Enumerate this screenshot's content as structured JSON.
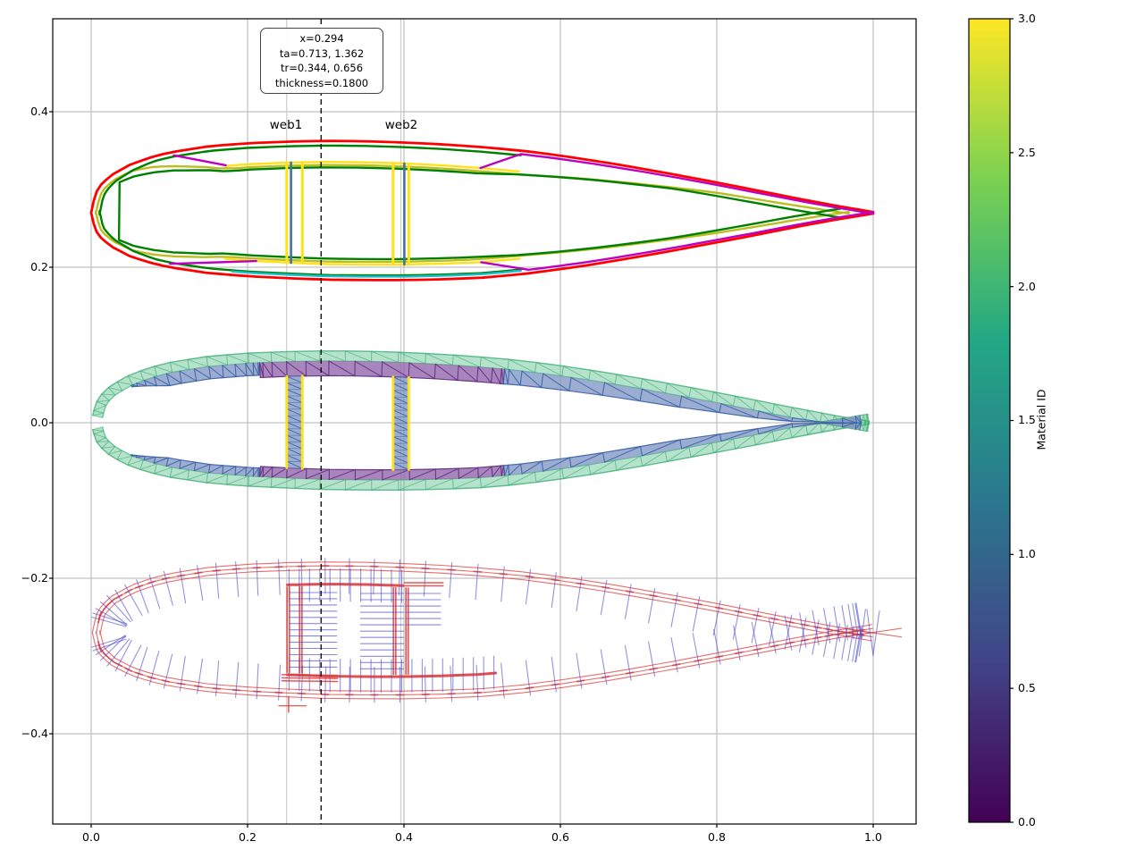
{
  "figure": {
    "kind": "blade-cross-section-analysis",
    "background": "#ffffff"
  },
  "chart_data": {
    "type": "line",
    "title": "",
    "xlabel": "",
    "ylabel": "",
    "xlim": [
      -0.049,
      1.055
    ],
    "ylim": [
      -0.516,
      0.52
    ],
    "grid": true,
    "x_tick_values": [
      0.0,
      0.2,
      0.4,
      0.6,
      0.8,
      1.0
    ],
    "x_tick_labels": [
      "0.0",
      "0.2",
      "0.4",
      "0.6",
      "0.8",
      "1.0"
    ],
    "y_tick_values": [
      0.4,
      0.2,
      0.0,
      -0.2,
      -0.4
    ],
    "y_tick_labels": [
      "0.4",
      "0.2",
      "0.0",
      "−0.2",
      "−0.4"
    ],
    "annotation": {
      "lines": [
        "x=0.294",
        "ta=0.713, 1.362",
        "tr=0.344, 0.656",
        "thickness=0.1800"
      ]
    },
    "cursor_x": 0.294,
    "guide_x": [
      0.25,
      0.396
    ],
    "web_labels": [
      {
        "text": "web1",
        "x": 0.25
      },
      {
        "text": "web2",
        "x": 0.397
      }
    ],
    "webs": [
      {
        "x0": 0.25,
        "x1": 0.27,
        "core_x": 0.2555
      },
      {
        "x0": 0.386,
        "x1": 0.406,
        "core_x": 0.4005
      }
    ],
    "views": {
      "layup_center_y": 0.27,
      "mesh_center_y": 0.0,
      "orientation_center_y": -0.27
    },
    "airfoil": {
      "chord": 1.0,
      "thickness": 0.18,
      "x": [
        0.0,
        0.005,
        0.0125,
        0.025,
        0.05,
        0.075,
        0.1,
        0.15,
        0.2,
        0.25,
        0.3,
        0.35,
        0.4,
        0.45,
        0.5,
        0.55,
        0.6,
        0.65,
        0.7,
        0.75,
        0.8,
        0.85,
        0.9,
        0.95,
        1.0
      ],
      "upper": [
        0.0,
        0.024,
        0.036,
        0.048,
        0.062,
        0.071,
        0.0775,
        0.0855,
        0.0895,
        0.0915,
        0.0925,
        0.092,
        0.0905,
        0.088,
        0.0845,
        0.08,
        0.0735,
        0.066,
        0.0575,
        0.0485,
        0.039,
        0.029,
        0.019,
        0.0095,
        0.001
      ],
      "lower": [
        0.0,
        -0.022,
        -0.032,
        -0.043,
        -0.056,
        -0.064,
        -0.07,
        -0.0775,
        -0.0815,
        -0.084,
        -0.086,
        -0.0865,
        -0.0865,
        -0.0855,
        -0.0835,
        -0.079,
        -0.0725,
        -0.065,
        -0.0565,
        -0.0475,
        -0.038,
        -0.0285,
        -0.0185,
        -0.0092,
        -0.001
      ]
    },
    "layup_lines": [
      {
        "name": "outer-outline",
        "color": "outline",
        "w": 2.8,
        "kind": "loop",
        "du": [
          [
            0,
            0
          ],
          [
            1,
            0
          ]
        ],
        "dl": [
          [
            0,
            0
          ],
          [
            1,
            0
          ]
        ]
      },
      {
        "name": "liner",
        "color": "liner",
        "w": 2.4,
        "kind": "loop",
        "xmax": 0.97,
        "du": [
          [
            0,
            0.006
          ],
          [
            0.05,
            0.008
          ],
          [
            0.17,
            0.031
          ],
          [
            0.55,
            0.031
          ],
          [
            0.8,
            0.013
          ],
          [
            0.97,
            0.007
          ]
        ],
        "dl": [
          [
            0,
            0.006
          ],
          [
            0.05,
            0.008
          ],
          [
            0.17,
            0.023
          ],
          [
            0.55,
            0.024
          ],
          [
            0.8,
            0.012
          ],
          [
            0.97,
            0.007
          ]
        ]
      },
      {
        "name": "skin-inner-outer",
        "color": "skin",
        "w": 2.4,
        "kind": "loop",
        "xmax": 0.55,
        "du": [
          [
            0,
            0.011
          ],
          [
            0.08,
            0.006
          ],
          [
            0.55,
            0.006
          ]
        ],
        "dl": [
          [
            0,
            0.011
          ],
          [
            0.08,
            0.006
          ],
          [
            0.55,
            0.006
          ]
        ]
      },
      {
        "name": "skin-inner-deep",
        "color": "skin",
        "w": 2.4,
        "kind": "loop",
        "xmin": 0.03,
        "xmax": 0.96,
        "du": [
          [
            0.03,
            0.013
          ],
          [
            0.17,
            0.034
          ],
          [
            0.5,
            0.034
          ],
          [
            0.75,
            0.018
          ],
          [
            0.96,
            0.014
          ]
        ],
        "dl": [
          [
            0.03,
            0.012
          ],
          [
            0.17,
            0.027
          ],
          [
            0.5,
            0.027
          ],
          [
            0.75,
            0.016
          ],
          [
            0.96,
            0.013
          ]
        ]
      },
      {
        "name": "sparcap-upper",
        "color": "spar",
        "w": 2.4,
        "kind": "upper",
        "xmin": 0.17,
        "xmax": 0.55,
        "du": [
          [
            0,
            0.027
          ],
          [
            1,
            0.027
          ]
        ]
      },
      {
        "name": "sparcap-lower",
        "color": "spar",
        "w": 2.4,
        "kind": "lower",
        "xmin": 0.17,
        "xmax": 0.55,
        "dl": [
          [
            0,
            0.02
          ],
          [
            1,
            0.02
          ]
        ]
      },
      {
        "name": "le-core-lower",
        "color": "core",
        "w": 2.4,
        "kind": "lower",
        "xmin": 0.18,
        "xmax": 0.55,
        "dl": [
          [
            0,
            0.0045
          ],
          [
            1,
            0.0045
          ]
        ]
      },
      {
        "name": "te-reinf-upper",
        "color": "reinf",
        "w": 2.4,
        "kind": "upper",
        "xmin": 0.55,
        "xmax": 1.0,
        "du": [
          [
            0.55,
            0.0045
          ],
          [
            1.0,
            0.002
          ]
        ],
        "lead": [
          0.5,
          0.027
        ]
      },
      {
        "name": "te-reinf-lower",
        "color": "reinf",
        "w": 2.4,
        "kind": "lower",
        "xmin": 0.56,
        "xmax": 1.0,
        "dl": [
          [
            0.56,
            0.0045
          ],
          [
            1.0,
            0.002
          ]
        ],
        "lead": [
          0.5,
          0.02
        ]
      },
      {
        "name": "le-reinf-upper",
        "color": "reinf",
        "w": 2.4,
        "kind": "segu",
        "x0": 0.105,
        "d0": 0.0045,
        "x1": 0.17,
        "d1": 0.026
      },
      {
        "name": "le-reinf-lower",
        "color": "reinf",
        "w": 2.4,
        "kind": "segl",
        "x0": 0.1,
        "d0": 0.0045,
        "x1": 0.21,
        "d1": 0.02
      }
    ],
    "mesh": {
      "skin_depth": 0.013,
      "panels": [
        {
          "side": "u",
          "x0": 0.045,
          "x1": 0.215,
          "din": [
            [
              0.045,
              0.015
            ],
            [
              0.09,
              0.029
            ],
            [
              0.215,
              0.029
            ]
          ],
          "fill": "meshPanel",
          "line": "meshPanelLine"
        },
        {
          "side": "l",
          "x0": 0.045,
          "x1": 0.215,
          "din": [
            [
              0.045,
              0.014
            ],
            [
              0.09,
              0.024
            ],
            [
              0.215,
              0.024
            ]
          ],
          "fill": "meshPanel",
          "line": "meshPanelLine"
        },
        {
          "side": "u",
          "x0": 0.215,
          "x1": 0.53,
          "din": [
            [
              0.215,
              0.032
            ],
            [
              0.53,
              0.032
            ]
          ],
          "fill": "meshCap",
          "line": "meshCapLine"
        },
        {
          "side": "l",
          "x0": 0.215,
          "x1": 0.53,
          "din": [
            [
              0.215,
              0.026
            ],
            [
              0.53,
              0.026
            ]
          ],
          "fill": "meshCap",
          "line": "meshCapLine"
        },
        {
          "side": "u",
          "x0": 0.53,
          "x1": 0.985,
          "din": [
            [
              0.53,
              0.032
            ],
            [
              0.75,
              0.028
            ],
            [
              0.985,
              0.015
            ]
          ],
          "fill": "meshPanel",
          "line": "meshPanelLine"
        },
        {
          "side": "l",
          "x0": 0.53,
          "x1": 0.985,
          "din": [
            [
              0.53,
              0.026
            ],
            [
              0.75,
              0.025
            ],
            [
              0.985,
              0.014
            ]
          ],
          "fill": "meshPanel",
          "line": "meshPanelLine"
        }
      ]
    },
    "orientation": {
      "shell_depths": [
        0.0015,
        0.0065,
        0.0115
      ],
      "normal_len": 0.042,
      "normal_back": 0.003
    },
    "colors": {
      "outline": "#ff0000",
      "skin": "#008000",
      "spar": "#ffe11a",
      "liner": "#bcbd22",
      "reinf": "#bf00bf",
      "core": "#17becf",
      "webCore": "#44719e",
      "meshSkinFill": "rgba(90,190,140,0.45)",
      "meshSkinLine": "rgba(63,174,118,0.85)",
      "meshCap": "rgba(148,103,173,0.80)",
      "meshCapLine": "#5c2a7c",
      "meshPanel": "rgba(130,152,196,0.80)",
      "meshPanelLine": "#3a5ea6",
      "meshWebEdge": "#ffe11a",
      "oriTangent": "#e03c3c",
      "oriNormal": "#4a4ad0",
      "grid": "#b3b3b3",
      "guide": "#cccccc",
      "cursor": "#000000",
      "spine": "#000000"
    },
    "colorbar": {
      "label": "Material ID",
      "tick_labels": [
        "3.0",
        "2.5",
        "2.0",
        "1.5",
        "1.0",
        "0.5",
        "0.0"
      ],
      "tick_values": [
        3.0,
        2.5,
        2.0,
        1.5,
        1.0,
        0.5,
        0.0
      ],
      "cmap": "viridis",
      "stops": [
        [
          0.0,
          "#440154"
        ],
        [
          0.2,
          "#414487"
        ],
        [
          0.4,
          "#2a788e"
        ],
        [
          0.6,
          "#22a884"
        ],
        [
          0.8,
          "#7ad151"
        ],
        [
          1.0,
          "#fde725"
        ]
      ]
    }
  }
}
